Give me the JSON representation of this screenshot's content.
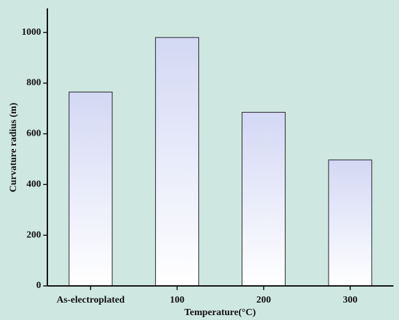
{
  "chart_data": {
    "type": "bar",
    "x_label": "Temperature(°C)",
    "y_label": "Curvature radius (m)",
    "categories": [
      "As-electroplated",
      "100",
      "200",
      "300"
    ],
    "values": [
      765,
      980,
      685,
      497
    ],
    "color": "#d3d8f4",
    "ylim": [
      0,
      1095
    ],
    "yticks": [
      0,
      200,
      400,
      600,
      800,
      1000
    ]
  }
}
